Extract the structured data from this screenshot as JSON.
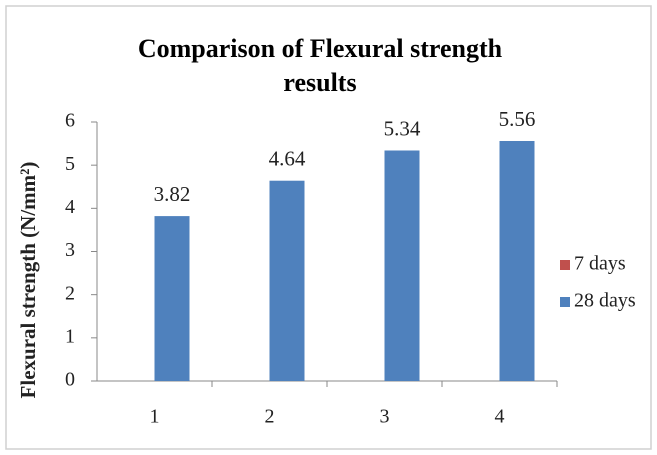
{
  "chart_data": {
    "type": "bar",
    "title": "Comparison of Flexural strength results",
    "y_label": "Flexural  strength (N/mm²)",
    "categories": [
      "1",
      "2",
      "3",
      "4"
    ],
    "series": [
      {
        "name": "7 days",
        "color": "#c0504d",
        "values": [
          null,
          null,
          null,
          null
        ]
      },
      {
        "name": "28 days",
        "color": "#4f81bd",
        "values": [
          3.82,
          4.64,
          5.34,
          5.56
        ]
      }
    ],
    "ylim": [
      0,
      6
    ],
    "yticks": [
      0,
      1,
      2,
      3,
      4,
      5,
      6
    ],
    "grid": false,
    "legend": "right"
  }
}
